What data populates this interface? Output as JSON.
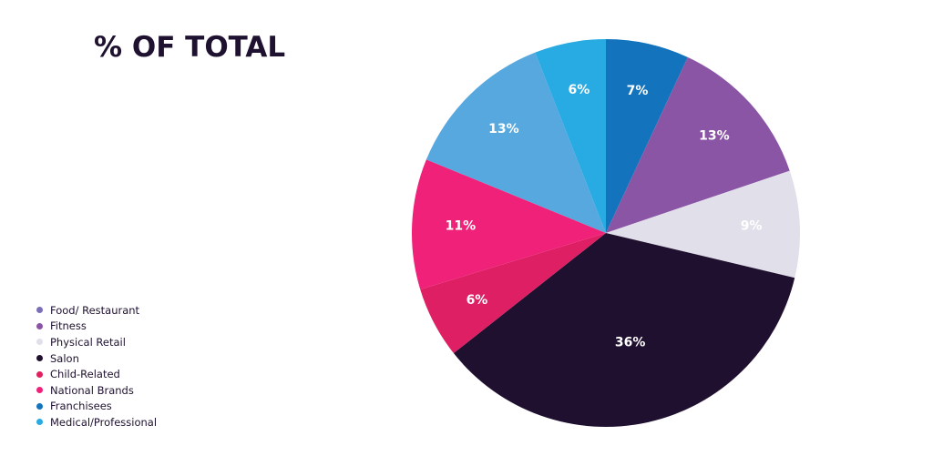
{
  "chart_data": {
    "type": "pie",
    "title": "% OF TOTAL",
    "legend_position": "bottom-left",
    "slices": [
      {
        "label": "Franchisees",
        "display": "7%",
        "value": 7,
        "color": "#1374bd",
        "text_color": "#ffffff"
      },
      {
        "label": "Fitness",
        "display": "13%",
        "value": 13,
        "color": "#8b55a6",
        "text_color": "#ffffff"
      },
      {
        "label": "Physical Retail",
        "display": "9%",
        "value": 9,
        "color": "#e1dfe9",
        "text_color": "#ffffff"
      },
      {
        "label": "Salon",
        "display": "36%",
        "value": 36,
        "color": "#201030",
        "text_color": "#ffffff"
      },
      {
        "label": "Child-Related",
        "display": "6%",
        "value": 6,
        "color": "#de1f63",
        "text_color": "#ffffff"
      },
      {
        "label": "National Brands",
        "display": "11%",
        "value": 11,
        "color": "#ef2179",
        "text_color": "#ffffff"
      },
      {
        "label": "Food/ Restaurant",
        "display": "13%",
        "value": 13,
        "color": "#56a8df",
        "text_color": "#ffffff"
      },
      {
        "label": "Medical/Professional",
        "display": "6%",
        "value": 6,
        "color": "#28abe2",
        "text_color": "#ffffff"
      }
    ],
    "legend": [
      {
        "label": "Food/ Restaurant",
        "color": "#7b6fb8"
      },
      {
        "label": "Fitness",
        "color": "#8b55a6"
      },
      {
        "label": "Physical Retail",
        "color": "#e1dfe9"
      },
      {
        "label": "Salon",
        "color": "#201030"
      },
      {
        "label": "Child-Related",
        "color": "#e0215f"
      },
      {
        "label": "National Brands",
        "color": "#ef2179"
      },
      {
        "label": "Franchisees",
        "color": "#1374bd"
      },
      {
        "label": "Medical/Professional",
        "color": "#28abe2"
      }
    ]
  }
}
